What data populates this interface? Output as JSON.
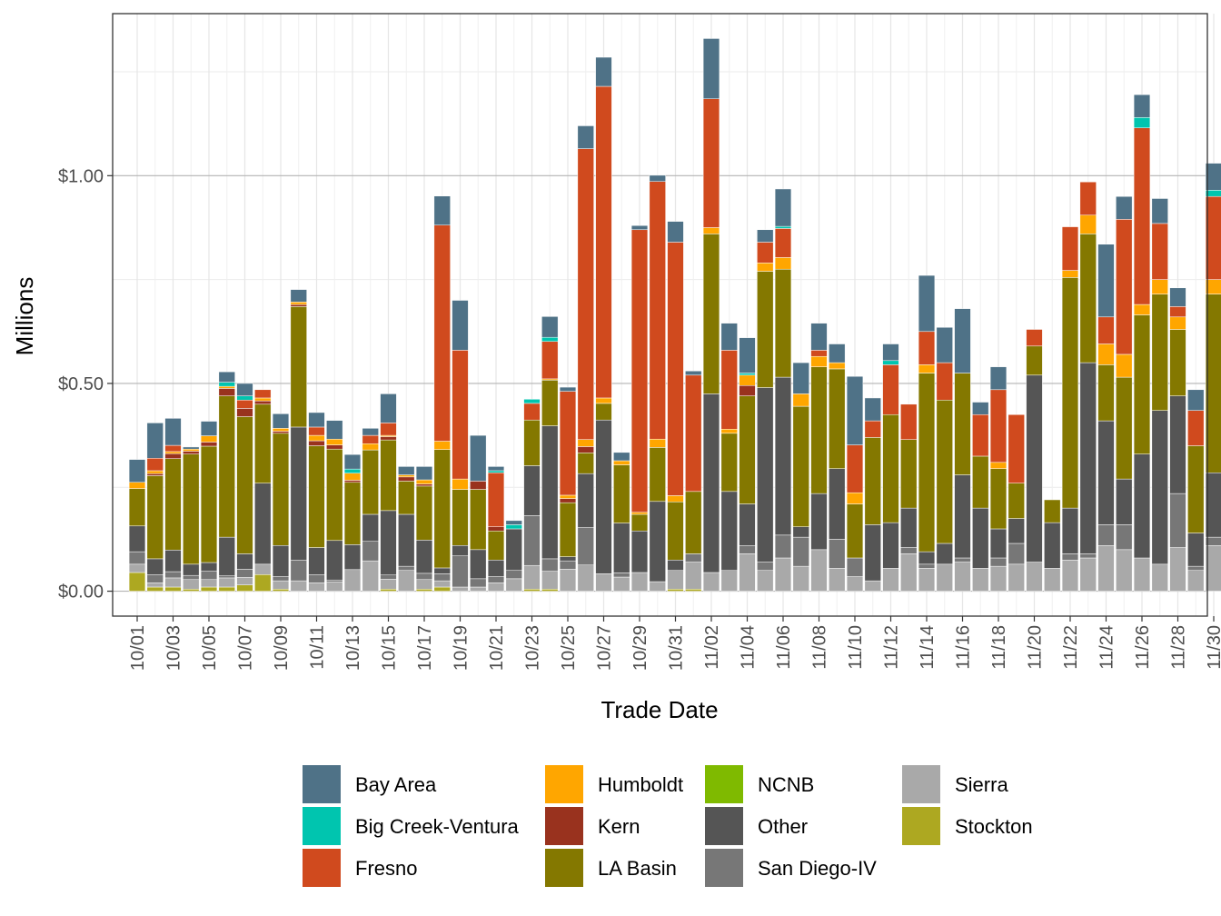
{
  "chart_data": {
    "type": "bar",
    "stacked": true,
    "title": "",
    "xlabel": "Trade Date",
    "ylabel": "Millions",
    "ylim": [
      -0.06,
      1.39
    ],
    "yticks": [
      {
        "value": 0.0,
        "label": "$0.00"
      },
      {
        "value": 0.5,
        "label": "$0.50"
      },
      {
        "value": 1.0,
        "label": "$1.00"
      }
    ],
    "legend_position": "bottom",
    "categories": [
      "10/01",
      "10/02",
      "10/03",
      "10/04",
      "10/05",
      "10/06",
      "10/07",
      "10/08",
      "10/09",
      "10/10",
      "10/11",
      "10/12",
      "10/13",
      "10/14",
      "10/15",
      "10/16",
      "10/17",
      "10/18",
      "10/19",
      "10/20",
      "10/21",
      "10/22",
      "10/23",
      "10/24",
      "10/25",
      "10/26",
      "10/27",
      "10/28",
      "10/29",
      "10/30",
      "10/31",
      "11/01",
      "11/02",
      "11/03",
      "11/04",
      "11/05",
      "11/06",
      "11/07",
      "11/08",
      "11/09",
      "11/10",
      "11/11",
      "11/12",
      "11/13",
      "11/14",
      "11/15",
      "11/16",
      "11/17",
      "11/18",
      "11/19",
      "11/20",
      "11/21",
      "11/22",
      "11/23",
      "11/24",
      "11/25",
      "11/26",
      "11/27",
      "11/28",
      "11/29",
      "11/30"
    ],
    "tick_labels": [
      "10/01",
      "10/03",
      "10/05",
      "10/07",
      "10/09",
      "10/11",
      "10/13",
      "10/15",
      "10/17",
      "10/19",
      "10/21",
      "10/23",
      "10/25",
      "10/27",
      "10/29",
      "10/31",
      "11/02",
      "11/04",
      "11/06",
      "11/08",
      "11/10",
      "11/12",
      "11/14",
      "11/16",
      "11/18",
      "11/20",
      "11/22",
      "11/24",
      "11/26",
      "11/28",
      "11/30"
    ],
    "series": [
      {
        "name": "Stockton",
        "color": "#ADA821",
        "values": [
          0.045,
          0.01,
          0.01,
          0.005,
          0.01,
          0.01,
          0.015,
          0.04,
          0.005,
          0.0,
          0.0,
          0.0,
          0.0,
          0.0,
          0.005,
          0.0,
          0.005,
          0.01,
          0.0,
          0.0,
          0.0,
          0.0,
          0.005,
          0.005,
          0.0,
          0.0,
          0.0,
          0.0,
          0.0,
          0.0,
          0.005,
          0.005,
          0.0,
          0.0,
          0.0,
          0.0,
          0.0,
          0.0,
          0.0,
          0.0,
          0.0,
          0.0,
          0.0,
          0.0,
          0.0,
          0.0,
          0.0,
          0.0,
          0.0,
          0.0,
          0.0,
          0.0,
          0.0,
          0.0,
          0.0,
          0.0,
          0.0,
          0.0,
          0.0,
          0.0,
          0.0
        ]
      },
      {
        "name": "Sierra",
        "color": "#A9A9A9",
        "values": [
          0.02,
          0.01,
          0.022,
          0.023,
          0.018,
          0.022,
          0.018,
          0.025,
          0.02,
          0.025,
          0.02,
          0.022,
          0.052,
          0.073,
          0.024,
          0.05,
          0.023,
          0.015,
          0.01,
          0.01,
          0.02,
          0.03,
          0.057,
          0.043,
          0.053,
          0.063,
          0.042,
          0.034,
          0.045,
          0.023,
          0.045,
          0.065,
          0.045,
          0.05,
          0.09,
          0.05,
          0.08,
          0.06,
          0.1,
          0.055,
          0.035,
          0.025,
          0.055,
          0.09,
          0.055,
          0.065,
          0.07,
          0.055,
          0.06,
          0.065,
          0.07,
          0.055,
          0.075,
          0.08,
          0.11,
          0.1,
          0.08,
          0.065,
          0.105,
          0.05,
          0.11
        ]
      },
      {
        "name": "San Diego-IV",
        "color": "#777777",
        "values": [
          0.03,
          0.02,
          0.015,
          0.01,
          0.02,
          0.005,
          0.02,
          0.0,
          0.01,
          0.05,
          0.02,
          0.005,
          0.0,
          0.047,
          0.01,
          0.01,
          0.015,
          0.017,
          0.075,
          0.02,
          0.015,
          0.02,
          0.12,
          0.03,
          0.02,
          0.09,
          0.0,
          0.01,
          0.0,
          0.0,
          0.0,
          0.02,
          0.0,
          0.0,
          0.02,
          0.02,
          0.055,
          0.07,
          0.0,
          0.07,
          0.045,
          0.0,
          0.0,
          0.015,
          0.01,
          0.0,
          0.01,
          0.0,
          0.02,
          0.05,
          0.0,
          0.0,
          0.015,
          0.01,
          0.05,
          0.06,
          0.0,
          0.0,
          0.13,
          0.01,
          0.02
        ]
      },
      {
        "name": "Other",
        "color": "#555555",
        "values": [
          0.062,
          0.038,
          0.052,
          0.027,
          0.021,
          0.093,
          0.037,
          0.195,
          0.075,
          0.32,
          0.065,
          0.095,
          0.06,
          0.065,
          0.155,
          0.125,
          0.08,
          0.014,
          0.025,
          0.07,
          0.04,
          0.1,
          0.12,
          0.32,
          0.01,
          0.13,
          0.37,
          0.12,
          0.1,
          0.193,
          0.025,
          0.0,
          0.43,
          0.19,
          0.1,
          0.42,
          0.38,
          0.025,
          0.135,
          0.17,
          0.0,
          0.135,
          0.11,
          0.095,
          0.03,
          0.05,
          0.2,
          0.145,
          0.07,
          0.06,
          0.45,
          0.11,
          0.11,
          0.46,
          0.25,
          0.11,
          0.25,
          0.37,
          0.235,
          0.08,
          0.155
        ]
      },
      {
        "name": "LA Basin",
        "color": "#847800",
        "values": [
          0.09,
          0.2,
          0.22,
          0.265,
          0.28,
          0.34,
          0.33,
          0.19,
          0.27,
          0.29,
          0.245,
          0.22,
          0.15,
          0.155,
          0.17,
          0.08,
          0.13,
          0.285,
          0.135,
          0.145,
          0.07,
          0.0,
          0.11,
          0.11,
          0.13,
          0.05,
          0.04,
          0.14,
          0.04,
          0.13,
          0.14,
          0.15,
          0.385,
          0.14,
          0.26,
          0.28,
          0.26,
          0.29,
          0.305,
          0.24,
          0.13,
          0.21,
          0.26,
          0.165,
          0.43,
          0.345,
          0.245,
          0.125,
          0.145,
          0.085,
          0.07,
          0.055,
          0.555,
          0.31,
          0.135,
          0.245,
          0.335,
          0.28,
          0.16,
          0.21,
          0.43
        ]
      },
      {
        "name": "Kern",
        "color": "#99321E",
        "values": [
          0.0,
          0.005,
          0.012,
          0.007,
          0.01,
          0.018,
          0.02,
          0.008,
          0.005,
          0.005,
          0.012,
          0.01,
          0.005,
          0.0,
          0.008,
          0.01,
          0.005,
          0.0,
          0.0,
          0.02,
          0.01,
          0.0,
          0.0,
          0.0,
          0.01,
          0.015,
          0.0,
          0.0,
          0.0,
          0.0,
          0.0,
          0.0,
          0.0,
          0.0,
          0.025,
          0.0,
          0.0,
          0.0,
          0.0,
          0.0,
          0.0,
          0.0,
          0.0,
          0.0,
          0.0,
          0.0,
          0.0,
          0.0,
          0.0,
          0.0,
          0.0,
          0.0,
          0.0,
          0.0,
          0.0,
          0.0,
          0.0,
          0.0,
          0.0,
          0.0,
          0.0
        ]
      },
      {
        "name": "Humboldt",
        "color": "#FFA600",
        "values": [
          0.015,
          0.007,
          0.005,
          0.005,
          0.015,
          0.005,
          0.0,
          0.007,
          0.007,
          0.006,
          0.013,
          0.014,
          0.017,
          0.015,
          0.003,
          0.005,
          0.01,
          0.02,
          0.025,
          0.0,
          0.0,
          0.0,
          0.0,
          0.003,
          0.008,
          0.017,
          0.013,
          0.01,
          0.005,
          0.02,
          0.015,
          0.0,
          0.015,
          0.01,
          0.025,
          0.02,
          0.028,
          0.03,
          0.025,
          0.015,
          0.027,
          0.0,
          0.0,
          0.0,
          0.02,
          0.0,
          0.0,
          0.0,
          0.015,
          0.0,
          0.0,
          0.0,
          0.017,
          0.045,
          0.05,
          0.055,
          0.025,
          0.035,
          0.03,
          0.0,
          0.035
        ]
      },
      {
        "name": "Fresno",
        "color": "#D04A1E",
        "values": [
          0.0,
          0.03,
          0.015,
          0.0,
          0.0,
          0.0,
          0.02,
          0.02,
          0.0,
          0.0,
          0.02,
          0.0,
          0.0,
          0.02,
          0.03,
          0.0,
          0.0,
          0.52,
          0.31,
          0.0,
          0.13,
          0.0,
          0.04,
          0.09,
          0.25,
          0.7,
          0.75,
          0.0,
          0.68,
          0.62,
          0.61,
          0.28,
          0.31,
          0.19,
          0.0,
          0.05,
          0.07,
          0.0,
          0.015,
          0.0,
          0.115,
          0.04,
          0.12,
          0.085,
          0.08,
          0.09,
          0.0,
          0.1,
          0.175,
          0.165,
          0.04,
          0.0,
          0.105,
          0.08,
          0.065,
          0.325,
          0.425,
          0.135,
          0.025,
          0.085,
          0.2
        ]
      },
      {
        "name": "Big Creek-Ventura",
        "color": "#00C5AF",
        "values": [
          0.0,
          0.0,
          0.0,
          0.0,
          0.0,
          0.01,
          0.01,
          0.0,
          0.0,
          0.0,
          0.0,
          0.0,
          0.01,
          0.0,
          0.0,
          0.0,
          0.0,
          0.0,
          0.0,
          0.0,
          0.005,
          0.01,
          0.01,
          0.01,
          0.0,
          0.0,
          0.0,
          0.0,
          0.0,
          0.0,
          0.0,
          0.0,
          0.0,
          0.0,
          0.005,
          0.0,
          0.005,
          0.0,
          0.0,
          0.0,
          0.0,
          0.0,
          0.01,
          0.0,
          0.0,
          0.0,
          0.0,
          0.0,
          0.0,
          0.0,
          0.0,
          0.0,
          0.0,
          0.0,
          0.0,
          0.0,
          0.025,
          0.0,
          0.0,
          0.0,
          0.015
        ]
      },
      {
        "name": "Bay Area",
        "color": "#4F7287",
        "values": [
          0.055,
          0.085,
          0.065,
          0.005,
          0.035,
          0.025,
          0.03,
          0.0,
          0.035,
          0.03,
          0.035,
          0.045,
          0.035,
          0.017,
          0.07,
          0.02,
          0.032,
          0.07,
          0.12,
          0.11,
          0.01,
          0.01,
          0.0,
          0.05,
          0.01,
          0.055,
          0.07,
          0.02,
          0.01,
          0.015,
          0.05,
          0.01,
          0.145,
          0.065,
          0.085,
          0.03,
          0.09,
          0.075,
          0.065,
          0.045,
          0.165,
          0.055,
          0.04,
          0.0,
          0.135,
          0.085,
          0.155,
          0.03,
          0.055,
          0.0,
          0.0,
          0.0,
          0.0,
          0.0,
          0.175,
          0.055,
          0.055,
          0.06,
          0.045,
          0.05,
          0.065
        ]
      },
      {
        "name": "NCNB",
        "color": "#7FBA00",
        "values": [
          0.0,
          0.0,
          0.0,
          0.0,
          0.0,
          0.0,
          0.0,
          0.0,
          0.0,
          0.0,
          0.0,
          0.0,
          0.0,
          0.0,
          0.0,
          0.0,
          0.0,
          0.0,
          0.0,
          0.0,
          0.0,
          0.0,
          0.0,
          0.0,
          0.0,
          0.0,
          0.0,
          0.0,
          0.0,
          0.0,
          0.0,
          0.0,
          0.0,
          0.0,
          0.0,
          0.0,
          0.0,
          0.0,
          0.0,
          0.0,
          0.0,
          0.0,
          0.0,
          0.0,
          0.0,
          0.0,
          0.0,
          0.0,
          0.0,
          0.0,
          0.0,
          0.0,
          0.0,
          0.0,
          0.0,
          0.0,
          0.0,
          0.0,
          0.0,
          0.0,
          0.0
        ]
      }
    ],
    "legend_entries": [
      {
        "name": "Bay Area",
        "color": "#4F7287"
      },
      {
        "name": "Big Creek-Ventura",
        "color": "#00C5AF"
      },
      {
        "name": "Fresno",
        "color": "#D04A1E"
      },
      {
        "name": "Humboldt",
        "color": "#FFA600"
      },
      {
        "name": "Kern",
        "color": "#99321E"
      },
      {
        "name": "LA Basin",
        "color": "#847800"
      },
      {
        "name": "NCNB",
        "color": "#7FBA00"
      },
      {
        "name": "Other",
        "color": "#555555"
      },
      {
        "name": "San Diego-IV",
        "color": "#777777"
      },
      {
        "name": "Sierra",
        "color": "#A9A9A9"
      },
      {
        "name": "Stockton",
        "color": "#ADA821"
      }
    ]
  }
}
